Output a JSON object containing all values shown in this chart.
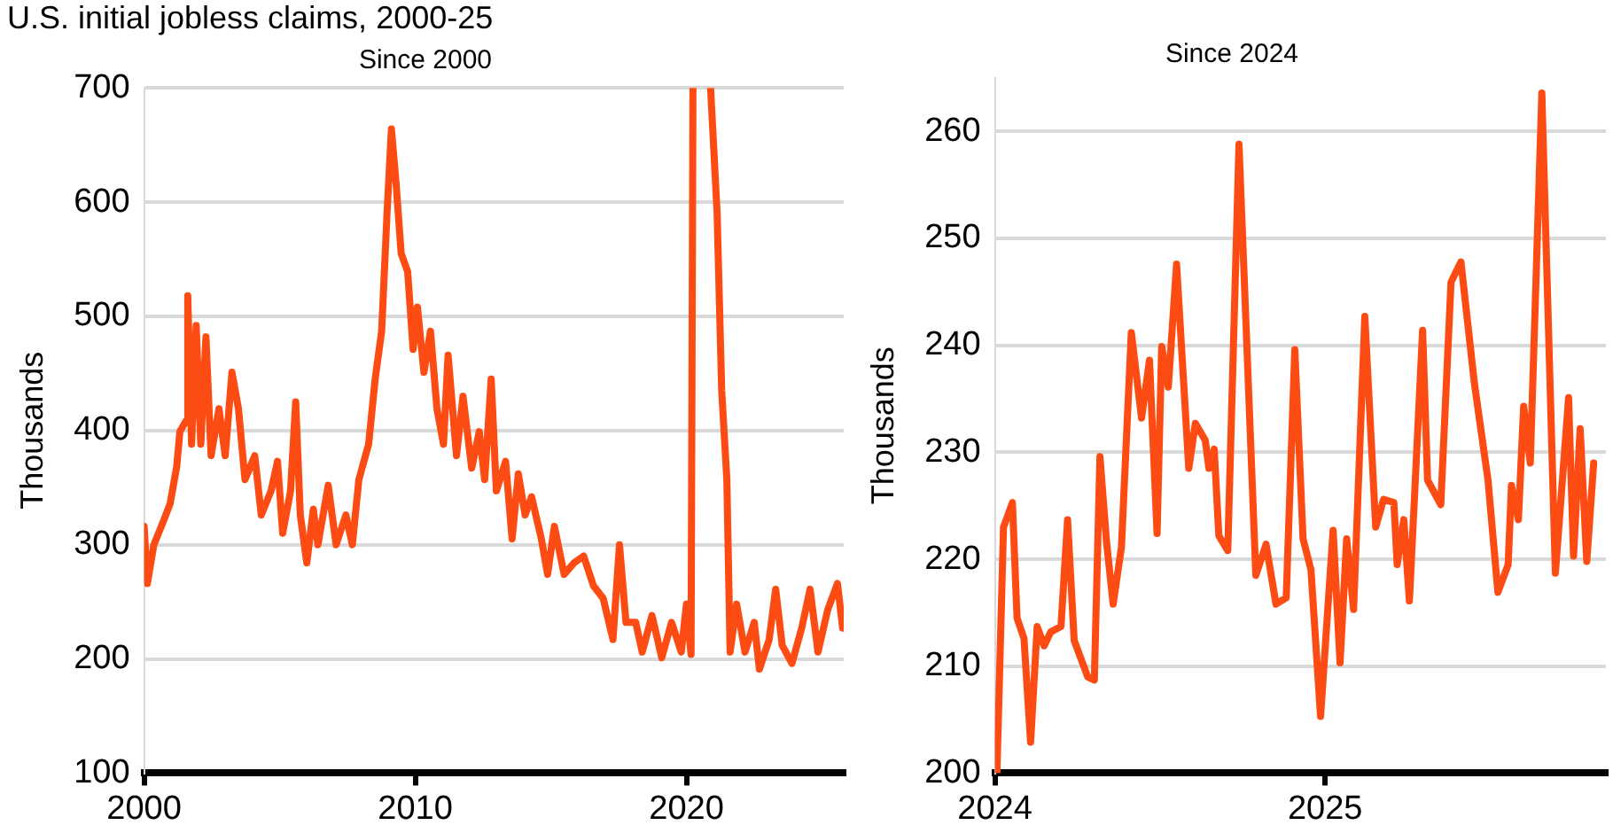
{
  "chart_data": [
    {
      "type": "line",
      "title": "U.S. initial jobless claims, 2000-25",
      "subtitle": "Since 2000",
      "ylabel": "Thousands",
      "color": "#fc4c14",
      "marker": "none",
      "line_style": "solid",
      "grid": "y",
      "xlim": [
        2000,
        2025.8
      ],
      "xticks": [
        2000,
        2010,
        2020
      ],
      "ylim": [
        100,
        700
      ],
      "yticks": [
        100,
        200,
        300,
        400,
        500,
        600,
        700
      ],
      "x": [
        2000.0,
        2000.12,
        2000.36,
        2000.72,
        2000.96,
        2001.2,
        2001.32,
        2001.56,
        2001.61,
        2001.75,
        2001.92,
        2002.09,
        2002.28,
        2002.47,
        2002.76,
        2002.99,
        2003.24,
        2003.48,
        2003.72,
        2004.08,
        2004.32,
        2004.68,
        2004.92,
        2005.11,
        2005.4,
        2005.59,
        2005.76,
        2006.0,
        2006.24,
        2006.41,
        2006.79,
        2007.08,
        2007.44,
        2007.68,
        2007.92,
        2008.28,
        2008.52,
        2008.76,
        2008.96,
        2009.12,
        2009.29,
        2009.48,
        2009.72,
        2009.92,
        2010.08,
        2010.32,
        2010.56,
        2010.8,
        2011.04,
        2011.21,
        2011.52,
        2011.76,
        2012.08,
        2012.36,
        2012.56,
        2012.8,
        2012.99,
        2013.33,
        2013.57,
        2013.8,
        2014.05,
        2014.29,
        2014.65,
        2014.88,
        2015.13,
        2015.49,
        2015.85,
        2016.21,
        2016.57,
        2016.93,
        2017.29,
        2017.53,
        2017.77,
        2018.13,
        2018.37,
        2018.73,
        2019.09,
        2019.45,
        2019.81,
        2020.0,
        2020.17,
        2020.24,
        2020.5,
        2020.89,
        2021.13,
        2021.3,
        2021.49,
        2021.61,
        2021.85,
        2022.16,
        2022.5,
        2022.69,
        2023.05,
        2023.29,
        2023.53,
        2023.89,
        2024.25,
        2024.56,
        2024.85,
        2025.21,
        2025.57,
        2025.76
      ],
      "values": [
        316,
        266,
        300,
        321,
        336,
        368,
        399,
        409,
        518,
        388,
        492,
        388,
        482,
        378,
        419,
        378,
        451,
        419,
        357,
        378,
        326,
        347,
        373,
        310,
        347,
        425,
        326,
        284,
        331,
        300,
        352,
        300,
        326,
        300,
        357,
        388,
        445,
        487,
        591,
        664,
        617,
        555,
        539,
        471,
        508,
        451,
        487,
        419,
        388,
        466,
        378,
        430,
        367,
        399,
        357,
        445,
        347,
        373,
        305,
        362,
        326,
        342,
        305,
        274,
        316,
        274,
        284,
        290,
        264,
        253,
        217,
        300,
        232,
        232,
        206,
        238,
        201,
        232,
        206,
        248,
        204,
        700,
        null,
        700,
        591,
        435,
        357,
        206,
        248,
        206,
        232,
        191,
        217,
        261,
        212,
        196,
        227,
        261,
        206,
        243,
        266,
        227
      ]
    },
    {
      "type": "line",
      "title": "Since 2024",
      "ylabel": "Thousands",
      "color": "#fc4c14",
      "marker": "none",
      "line_style": "solid",
      "grid": "y",
      "xlim": [
        2024,
        2025.85
      ],
      "xticks": [
        2024,
        2025
      ],
      "ylim": [
        200,
        265
      ],
      "yticks": [
        200,
        210,
        220,
        230,
        240,
        250,
        260
      ],
      "x": [
        2024.006,
        2024.026,
        2024.053,
        2024.067,
        2024.088,
        2024.108,
        2024.128,
        2024.149,
        2024.169,
        2024.2,
        2024.22,
        2024.24,
        2024.281,
        2024.301,
        2024.318,
        2024.338,
        2024.358,
        2024.383,
        2024.413,
        2024.444,
        2024.468,
        2024.491,
        2024.505,
        2024.525,
        2024.55,
        2024.587,
        2024.607,
        2024.637,
        2024.648,
        2024.664,
        2024.678,
        2024.705,
        2024.739,
        2024.79,
        2024.821,
        2024.851,
        2024.882,
        2024.908,
        2024.933,
        2024.957,
        2024.986,
        2025.024,
        2025.045,
        2025.065,
        2025.086,
        2025.12,
        2025.153,
        2025.177,
        2025.208,
        2025.218,
        2025.238,
        2025.255,
        2025.295,
        2025.31,
        2025.35,
        2025.381,
        2025.411,
        2025.452,
        2025.493,
        2025.523,
        2025.554,
        2025.564,
        2025.585,
        2025.601,
        2025.621,
        2025.656,
        2025.697,
        2025.737,
        2025.752,
        2025.772,
        2025.792,
        2025.813
      ],
      "values": [
        200,
        223,
        225.3,
        214.5,
        212.6,
        202.9,
        213.7,
        211.9,
        213.2,
        213.7,
        223.7,
        212.4,
        209,
        208.7,
        229.6,
        221.6,
        215.8,
        221.1,
        241.2,
        233.2,
        238.6,
        222.4,
        239.9,
        236.1,
        247.6,
        228.5,
        232.7,
        231.1,
        228.5,
        230.3,
        222.2,
        220.8,
        258.8,
        218.5,
        221.4,
        215.8,
        216.4,
        239.6,
        221.9,
        219,
        205.3,
        222.7,
        210.3,
        221.9,
        215.3,
        242.7,
        223,
        225.6,
        225.3,
        219.5,
        223.7,
        216.1,
        241.4,
        227.4,
        225.1,
        245.9,
        247.8,
        236.4,
        227.4,
        216.9,
        219.5,
        226.9,
        223.7,
        234.3,
        229,
        263.6,
        218.7,
        235.1,
        220.3,
        232.2,
        219.8,
        229
      ]
    }
  ]
}
